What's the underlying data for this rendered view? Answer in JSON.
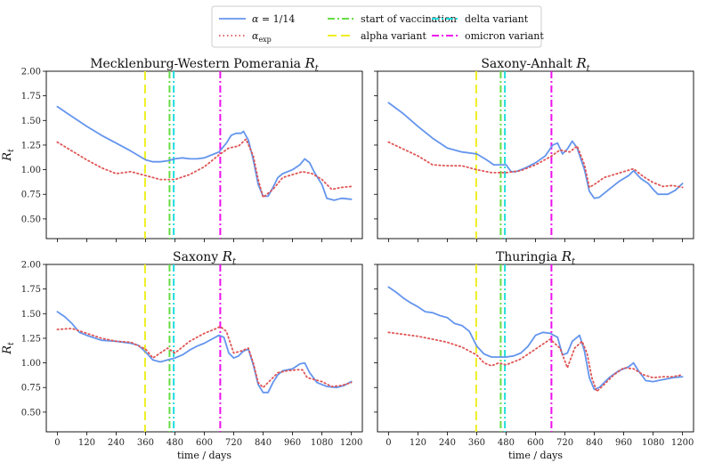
{
  "chart_data": {
    "type": "line",
    "layout": "2x2",
    "xlabel": "time / days",
    "ylabel": "R_t",
    "xlim": [
      -45,
      1245
    ],
    "ylim": [
      0.3,
      2.0
    ],
    "xticks": [
      0,
      120,
      240,
      360,
      480,
      600,
      720,
      840,
      960,
      1080,
      1200
    ],
    "yticks": [
      0.5,
      0.75,
      1.0,
      1.25,
      1.5,
      1.75,
      2.0
    ],
    "ytick_labels": [
      "0.50",
      "0.75",
      "1.00",
      "1.25",
      "1.50",
      "1.75",
      "2.00"
    ],
    "legend": {
      "placement": "top-center",
      "columns": 3,
      "entries": [
        {
          "key": "alpha14",
          "label": "α = 1/14",
          "color": "#6495ed",
          "style": "solid"
        },
        {
          "key": "alphaexp",
          "label": "αexp",
          "color": "#e05555",
          "style": "dotted"
        },
        {
          "key": "vacc",
          "label": "start of vaccination",
          "color": "#66dd44",
          "style": "dashdot"
        },
        {
          "key": "alphavar",
          "label": "alpha variant",
          "color": "#eeee22",
          "style": "dashed"
        },
        {
          "key": "delta",
          "label": "delta variant",
          "color": "#22dddd",
          "style": "dashdot"
        },
        {
          "key": "omicron",
          "label": "omicron variant",
          "color": "#ee11ee",
          "style": "dashdot"
        }
      ]
    },
    "events": [
      {
        "key": "alphavar",
        "x": 358
      },
      {
        "key": "vacc",
        "x": 458
      },
      {
        "key": "delta",
        "x": 475
      },
      {
        "key": "omicron",
        "x": 665
      }
    ],
    "panels": [
      {
        "title": "Mecklenburg-Western Pomerania",
        "series": [
          {
            "key": "alpha14",
            "x": [
              0,
              60,
              120,
              180,
              240,
              300,
              360,
              390,
              420,
              450,
              480,
              510,
              540,
              570,
              600,
              630,
              660,
              690,
              710,
              730,
              750,
              760,
              780,
              800,
              820,
              840,
              860,
              880,
              900,
              920,
              960,
              990,
              1010,
              1030,
              1050,
              1080,
              1100,
              1130,
              1160,
              1200
            ],
            "y": [
              1.64,
              1.54,
              1.44,
              1.35,
              1.27,
              1.19,
              1.1,
              1.08,
              1.08,
              1.09,
              1.11,
              1.12,
              1.11,
              1.11,
              1.12,
              1.15,
              1.18,
              1.27,
              1.35,
              1.37,
              1.37,
              1.39,
              1.3,
              1.1,
              0.85,
              0.73,
              0.73,
              0.82,
              0.92,
              0.96,
              1.0,
              1.05,
              1.11,
              1.07,
              0.97,
              0.85,
              0.71,
              0.69,
              0.71,
              0.7
            ]
          },
          {
            "key": "alphaexp",
            "x": [
              0,
              60,
              120,
              180,
              240,
              300,
              360,
              420,
              480,
              540,
              600,
              660,
              700,
              740,
              770,
              800,
              820,
              840,
              880,
              920,
              960,
              1000,
              1040,
              1080,
              1120,
              1160,
              1200
            ],
            "y": [
              1.28,
              1.19,
              1.1,
              1.02,
              0.96,
              0.98,
              0.94,
              0.9,
              0.9,
              0.95,
              1.03,
              1.15,
              1.22,
              1.24,
              1.31,
              1.14,
              0.9,
              0.72,
              0.8,
              0.92,
              0.95,
              0.98,
              0.96,
              0.9,
              0.8,
              0.82,
              0.83
            ]
          }
        ]
      },
      {
        "title": "Saxony-Anhalt",
        "series": [
          {
            "key": "alpha14",
            "x": [
              0,
              60,
              120,
              180,
              240,
              300,
              360,
              400,
              430,
              460,
              480,
              500,
              520,
              560,
              600,
              640,
              670,
              690,
              710,
              730,
              750,
              770,
              800,
              820,
              840,
              860,
              900,
              940,
              980,
              1000,
              1030,
              1060,
              1080,
              1100,
              1140,
              1170,
              1200
            ],
            "y": [
              1.68,
              1.57,
              1.44,
              1.32,
              1.22,
              1.18,
              1.16,
              1.1,
              1.05,
              1.05,
              1.05,
              0.98,
              0.98,
              1.02,
              1.07,
              1.14,
              1.25,
              1.27,
              1.16,
              1.21,
              1.29,
              1.22,
              1.0,
              0.78,
              0.71,
              0.72,
              0.8,
              0.88,
              0.94,
              0.99,
              0.91,
              0.86,
              0.8,
              0.75,
              0.75,
              0.79,
              0.86
            ]
          },
          {
            "key": "alphaexp",
            "x": [
              0,
              60,
              120,
              180,
              240,
              300,
              360,
              420,
              480,
              540,
              600,
              660,
              700,
              740,
              770,
              800,
              820,
              840,
              880,
              920,
              960,
              1000,
              1040,
              1080,
              1120,
              1160,
              1200
            ],
            "y": [
              1.28,
              1.21,
              1.14,
              1.05,
              1.04,
              1.04,
              1.0,
              0.97,
              0.97,
              0.99,
              1.05,
              1.13,
              1.2,
              1.18,
              1.24,
              1.05,
              0.82,
              0.85,
              0.92,
              0.95,
              0.98,
              1.01,
              0.93,
              0.87,
              0.83,
              0.84,
              0.82
            ]
          }
        ]
      },
      {
        "title": "Saxony",
        "series": [
          {
            "key": "alpha14",
            "x": [
              0,
              30,
              60,
              90,
              120,
              180,
              240,
              300,
              330,
              360,
              390,
              420,
              450,
              480,
              510,
              540,
              570,
              600,
              630,
              660,
              680,
              700,
              720,
              740,
              760,
              780,
              800,
              820,
              840,
              860,
              880,
              900,
              920,
              960,
              990,
              1010,
              1030,
              1060,
              1100,
              1140,
              1170,
              1200
            ],
            "y": [
              1.52,
              1.47,
              1.4,
              1.31,
              1.28,
              1.23,
              1.22,
              1.2,
              1.18,
              1.11,
              1.03,
              1.01,
              1.03,
              1.05,
              1.08,
              1.13,
              1.17,
              1.2,
              1.24,
              1.28,
              1.26,
              1.1,
              1.05,
              1.07,
              1.12,
              1.14,
              0.98,
              0.78,
              0.7,
              0.7,
              0.8,
              0.88,
              0.92,
              0.94,
              0.99,
              1.0,
              0.9,
              0.8,
              0.76,
              0.75,
              0.77,
              0.81
            ]
          },
          {
            "key": "alphaexp",
            "x": [
              0,
              60,
              120,
              180,
              240,
              300,
              360,
              390,
              420,
              450,
              480,
              540,
              600,
              640,
              665,
              690,
              720,
              750,
              780,
              800,
              820,
              840,
              860,
              900,
              940,
              980,
              1000,
              1020,
              1050,
              1080,
              1120,
              1160,
              1200
            ],
            "y": [
              1.34,
              1.35,
              1.3,
              1.25,
              1.22,
              1.21,
              1.14,
              1.05,
              1.1,
              1.15,
              1.1,
              1.22,
              1.3,
              1.34,
              1.37,
              1.32,
              1.1,
              1.12,
              1.15,
              1.0,
              0.8,
              0.75,
              0.8,
              0.9,
              0.92,
              0.93,
              0.93,
              0.85,
              0.83,
              0.81,
              0.76,
              0.77,
              0.8
            ]
          }
        ]
      },
      {
        "title": "Thuringia",
        "series": [
          {
            "key": "alpha14",
            "x": [
              0,
              30,
              60,
              90,
              120,
              150,
              180,
              210,
              240,
              270,
              300,
              330,
              360,
              390,
              420,
              450,
              480,
              510,
              540,
              570,
              600,
              630,
              660,
              690,
              710,
              730,
              750,
              780,
              800,
              820,
              840,
              860,
              900,
              940,
              980,
              1000,
              1020,
              1050,
              1080,
              1120,
              1160,
              1200
            ],
            "y": [
              1.77,
              1.72,
              1.66,
              1.61,
              1.57,
              1.52,
              1.51,
              1.48,
              1.46,
              1.4,
              1.38,
              1.32,
              1.17,
              1.09,
              1.06,
              1.06,
              1.06,
              1.07,
              1.1,
              1.17,
              1.28,
              1.31,
              1.3,
              1.26,
              1.08,
              1.1,
              1.22,
              1.28,
              1.12,
              0.85,
              0.73,
              0.75,
              0.85,
              0.92,
              0.96,
              1.0,
              0.92,
              0.82,
              0.81,
              0.83,
              0.85,
              0.86
            ]
          },
          {
            "key": "alphaexp",
            "x": [
              0,
              60,
              120,
              180,
              240,
              300,
              360,
              390,
              420,
              450,
              480,
              540,
              600,
              660,
              700,
              730,
              760,
              790,
              810,
              830,
              850,
              880,
              920,
              960,
              1000,
              1040,
              1080,
              1120,
              1160,
              1200
            ],
            "y": [
              1.31,
              1.29,
              1.27,
              1.24,
              1.21,
              1.16,
              1.08,
              1.0,
              0.97,
              1.0,
              0.98,
              1.04,
              1.14,
              1.24,
              1.15,
              0.95,
              1.15,
              1.22,
              1.1,
              0.85,
              0.71,
              0.78,
              0.88,
              0.95,
              0.94,
              0.88,
              0.85,
              0.86,
              0.86,
              0.88
            ]
          }
        ]
      }
    ]
  }
}
